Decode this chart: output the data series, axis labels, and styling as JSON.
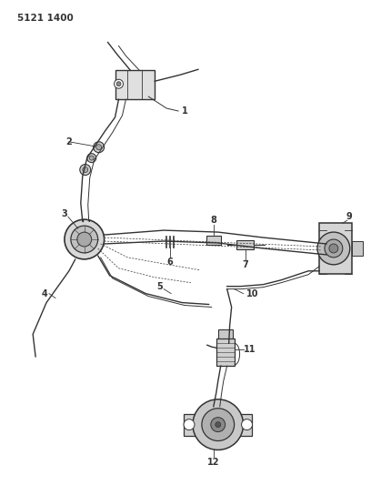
{
  "title_code": "5121 1400",
  "bg_color": "#ffffff",
  "lc": "#333333",
  "fig_width": 4.08,
  "fig_height": 5.33,
  "dpi": 100
}
